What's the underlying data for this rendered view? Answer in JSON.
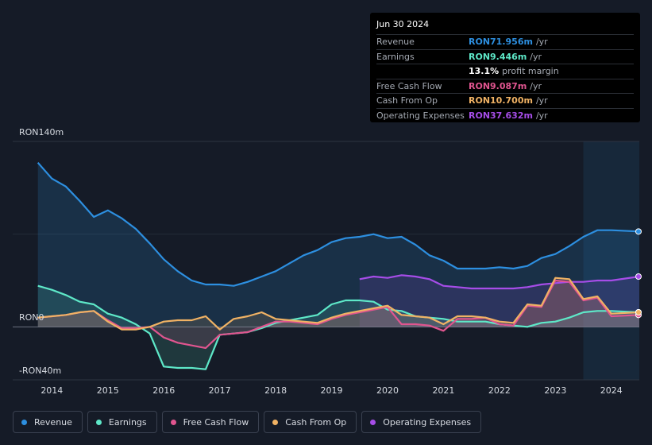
{
  "tooltip": {
    "date": "Jun 30 2024",
    "rows": [
      {
        "label": "Revenue",
        "value": "RON71.956m",
        "unit": "/yr",
        "color": "#2d8fe0"
      },
      {
        "label": "Earnings",
        "value": "RON9.446m",
        "unit": "/yr",
        "color": "#5ee8c8"
      },
      {
        "label": "",
        "value": "13.1%",
        "unit": "profit margin",
        "color": "#ffffff"
      },
      {
        "label": "Free Cash Flow",
        "value": "RON9.087m",
        "unit": "/yr",
        "color": "#e0558f"
      },
      {
        "label": "Cash From Op",
        "value": "RON10.700m",
        "unit": "/yr",
        "color": "#f0b264"
      },
      {
        "label": "Operating Expenses",
        "value": "RON37.632m",
        "unit": "/yr",
        "color": "#a64de8"
      }
    ]
  },
  "legend": [
    {
      "label": "Revenue",
      "color": "#2d8fe0"
    },
    {
      "label": "Earnings",
      "color": "#5ee8c8"
    },
    {
      "label": "Free Cash Flow",
      "color": "#e0558f"
    },
    {
      "label": "Cash From Op",
      "color": "#f0b264"
    },
    {
      "label": "Operating Expenses",
      "color": "#a64de8"
    }
  ],
  "chart_data": {
    "type": "area",
    "title": "",
    "unit": "RON m",
    "y_axis_labels": [
      "RON140m",
      "RON0",
      "-RON40m"
    ],
    "ylim": [
      -40,
      140
    ],
    "xlim": [
      2013.3,
      2024.5
    ],
    "x_ticks": [
      "2014",
      "2015",
      "2016",
      "2017",
      "2018",
      "2019",
      "2020",
      "2021",
      "2022",
      "2023",
      "2024"
    ],
    "forecast_start": 2023.5,
    "series": [
      {
        "name": "Revenue",
        "color": "#2d8fe0",
        "points": [
          [
            2013.75,
            124
          ],
          [
            2014.0,
            112
          ],
          [
            2014.25,
            106
          ],
          [
            2014.5,
            95
          ],
          [
            2014.75,
            83
          ],
          [
            2015.0,
            88
          ],
          [
            2015.25,
            82
          ],
          [
            2015.5,
            74
          ],
          [
            2015.75,
            63
          ],
          [
            2016.0,
            51
          ],
          [
            2016.25,
            42
          ],
          [
            2016.5,
            35
          ],
          [
            2016.75,
            32
          ],
          [
            2017.0,
            32
          ],
          [
            2017.25,
            31
          ],
          [
            2017.5,
            34
          ],
          [
            2017.75,
            38
          ],
          [
            2018.0,
            42
          ],
          [
            2018.25,
            48
          ],
          [
            2018.5,
            54
          ],
          [
            2018.75,
            58
          ],
          [
            2019.0,
            64
          ],
          [
            2019.25,
            67
          ],
          [
            2019.5,
            68
          ],
          [
            2019.75,
            70
          ],
          [
            2020.0,
            67
          ],
          [
            2020.25,
            68
          ],
          [
            2020.5,
            62
          ],
          [
            2020.75,
            54
          ],
          [
            2021.0,
            50
          ],
          [
            2021.25,
            44
          ],
          [
            2021.5,
            44
          ],
          [
            2021.75,
            44
          ],
          [
            2022.0,
            45
          ],
          [
            2022.25,
            44
          ],
          [
            2022.5,
            46
          ],
          [
            2022.75,
            52
          ],
          [
            2023.0,
            55
          ],
          [
            2023.25,
            61
          ],
          [
            2023.5,
            68
          ],
          [
            2023.75,
            73
          ],
          [
            2024.0,
            73
          ],
          [
            2024.5,
            72
          ]
        ]
      },
      {
        "name": "Earnings",
        "color": "#5ee8c8",
        "points": [
          [
            2013.75,
            31
          ],
          [
            2014.0,
            28
          ],
          [
            2014.25,
            24
          ],
          [
            2014.5,
            19
          ],
          [
            2014.75,
            17
          ],
          [
            2015.0,
            10
          ],
          [
            2015.25,
            7
          ],
          [
            2015.5,
            2
          ],
          [
            2015.75,
            -5
          ],
          [
            2016.0,
            -30
          ],
          [
            2016.25,
            -31
          ],
          [
            2016.5,
            -31
          ],
          [
            2016.75,
            -32
          ],
          [
            2017.0,
            -6
          ],
          [
            2017.25,
            -5
          ],
          [
            2017.5,
            -4
          ],
          [
            2017.75,
            -1
          ],
          [
            2018.0,
            3
          ],
          [
            2018.25,
            5
          ],
          [
            2018.5,
            7
          ],
          [
            2018.75,
            9
          ],
          [
            2019.0,
            17
          ],
          [
            2019.25,
            20
          ],
          [
            2019.5,
            20
          ],
          [
            2019.75,
            19
          ],
          [
            2020.0,
            13
          ],
          [
            2020.25,
            12
          ],
          [
            2020.5,
            8
          ],
          [
            2020.75,
            7
          ],
          [
            2021.0,
            6
          ],
          [
            2021.25,
            4
          ],
          [
            2021.5,
            4
          ],
          [
            2021.75,
            4
          ],
          [
            2022.0,
            2
          ],
          [
            2022.25,
            1
          ],
          [
            2022.5,
            0
          ],
          [
            2022.75,
            3
          ],
          [
            2023.0,
            4
          ],
          [
            2023.25,
            7
          ],
          [
            2023.5,
            11
          ],
          [
            2023.75,
            12
          ],
          [
            2024.0,
            12
          ],
          [
            2024.5,
            11
          ]
        ]
      },
      {
        "name": "Free Cash Flow",
        "color": "#e0558f",
        "points": [
          [
            2013.75,
            7
          ],
          [
            2014.0,
            8
          ],
          [
            2014.25,
            9
          ],
          [
            2014.5,
            11
          ],
          [
            2014.75,
            12
          ],
          [
            2015.0,
            5
          ],
          [
            2015.25,
            -1
          ],
          [
            2015.5,
            -1
          ],
          [
            2015.75,
            0
          ],
          [
            2016.0,
            -8
          ],
          [
            2016.25,
            -12
          ],
          [
            2016.5,
            -14
          ],
          [
            2016.75,
            -16
          ],
          [
            2017.0,
            -6
          ],
          [
            2017.25,
            -5
          ],
          [
            2017.5,
            -4
          ],
          [
            2017.75,
            0
          ],
          [
            2018.0,
            4
          ],
          [
            2018.25,
            4
          ],
          [
            2018.5,
            3
          ],
          [
            2018.75,
            2
          ],
          [
            2019.0,
            6
          ],
          [
            2019.25,
            9
          ],
          [
            2019.5,
            11
          ],
          [
            2019.75,
            13
          ],
          [
            2020.0,
            15
          ],
          [
            2020.25,
            2
          ],
          [
            2020.5,
            2
          ],
          [
            2020.75,
            1
          ],
          [
            2021.0,
            -3
          ],
          [
            2021.25,
            6
          ],
          [
            2021.5,
            6
          ],
          [
            2021.75,
            7
          ],
          [
            2022.0,
            2
          ],
          [
            2022.25,
            1
          ],
          [
            2022.5,
            16
          ],
          [
            2022.75,
            15
          ],
          [
            2023.0,
            35
          ],
          [
            2023.25,
            34
          ],
          [
            2023.5,
            20
          ],
          [
            2023.75,
            22
          ],
          [
            2024.0,
            8
          ],
          [
            2024.5,
            9
          ]
        ]
      },
      {
        "name": "Cash From Op",
        "color": "#f0b264",
        "points": [
          [
            2013.75,
            7
          ],
          [
            2014.0,
            8
          ],
          [
            2014.25,
            9
          ],
          [
            2014.5,
            11
          ],
          [
            2014.75,
            12
          ],
          [
            2015.0,
            4
          ],
          [
            2015.25,
            -2
          ],
          [
            2015.5,
            -2
          ],
          [
            2015.75,
            0
          ],
          [
            2016.0,
            4
          ],
          [
            2016.25,
            5
          ],
          [
            2016.5,
            5
          ],
          [
            2016.75,
            8
          ],
          [
            2017.0,
            -2
          ],
          [
            2017.25,
            6
          ],
          [
            2017.5,
            8
          ],
          [
            2017.75,
            11
          ],
          [
            2018.0,
            6
          ],
          [
            2018.25,
            5
          ],
          [
            2018.5,
            4
          ],
          [
            2018.75,
            3
          ],
          [
            2019.0,
            7
          ],
          [
            2019.25,
            10
          ],
          [
            2019.5,
            12
          ],
          [
            2019.75,
            14
          ],
          [
            2020.0,
            16
          ],
          [
            2020.25,
            9
          ],
          [
            2020.5,
            8
          ],
          [
            2020.75,
            7
          ],
          [
            2021.0,
            2
          ],
          [
            2021.25,
            8
          ],
          [
            2021.5,
            8
          ],
          [
            2021.75,
            7
          ],
          [
            2022.0,
            4
          ],
          [
            2022.25,
            3
          ],
          [
            2022.5,
            17
          ],
          [
            2022.75,
            16
          ],
          [
            2023.0,
            37
          ],
          [
            2023.25,
            36
          ],
          [
            2023.5,
            21
          ],
          [
            2023.75,
            23
          ],
          [
            2024.0,
            10
          ],
          [
            2024.5,
            11
          ]
        ]
      },
      {
        "name": "Operating Expenses",
        "color": "#a64de8",
        "points": [
          [
            2019.5,
            36
          ],
          [
            2019.75,
            38
          ],
          [
            2020.0,
            37
          ],
          [
            2020.25,
            39
          ],
          [
            2020.5,
            38
          ],
          [
            2020.75,
            36
          ],
          [
            2021.0,
            31
          ],
          [
            2021.25,
            30
          ],
          [
            2021.5,
            29
          ],
          [
            2021.75,
            29
          ],
          [
            2022.0,
            29
          ],
          [
            2022.25,
            29
          ],
          [
            2022.5,
            30
          ],
          [
            2022.75,
            32
          ],
          [
            2023.0,
            33
          ],
          [
            2023.25,
            34
          ],
          [
            2023.5,
            34
          ],
          [
            2023.75,
            35
          ],
          [
            2024.0,
            35
          ],
          [
            2024.5,
            38
          ]
        ]
      }
    ]
  }
}
